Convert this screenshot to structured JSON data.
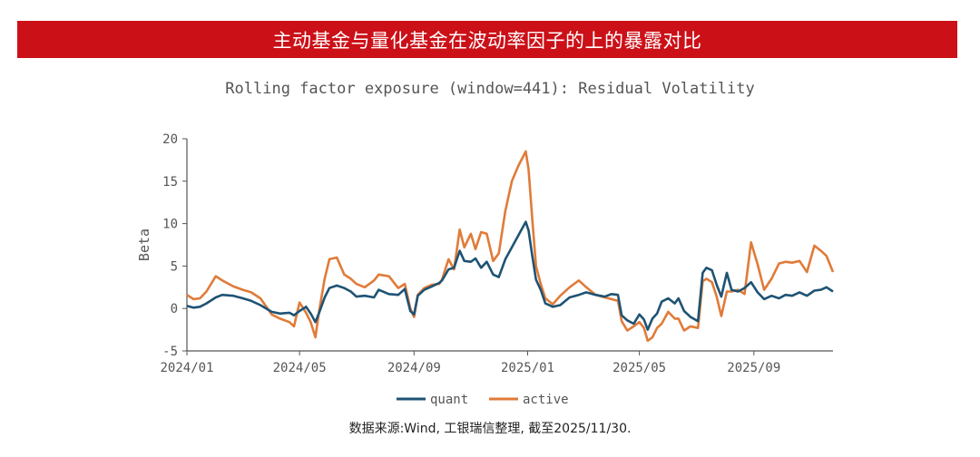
{
  "banner": {
    "title": "主动基金与量化基金在波动率因子的上的暴露对比"
  },
  "colors": {
    "banner_bg": "#cc1018",
    "quant": "#1e5374",
    "active": "#e07b39",
    "axis": "#555555",
    "text": "#555555"
  },
  "source": "数据来源:Wind, 工银瑞信整理, 截至2025/11/30.",
  "chart_data": {
    "type": "line",
    "title": "Rolling factor exposure (window=441): Residual Volatility",
    "xlabel": "",
    "ylabel": "Beta",
    "xlim": [
      "2024-01-01",
      "2025-11-25"
    ],
    "ylim": [
      -5,
      20
    ],
    "yticks": [
      -5,
      0,
      5,
      10,
      15,
      20
    ],
    "xticks": [
      {
        "date": "2024-01-01",
        "label": "2024/01"
      },
      {
        "date": "2024-05-01",
        "label": "2024/05"
      },
      {
        "date": "2024-09-01",
        "label": "2024/09"
      },
      {
        "date": "2025-01-01",
        "label": "2025/01"
      },
      {
        "date": "2025-05-01",
        "label": "2025/05"
      },
      {
        "date": "2025-09-01",
        "label": "2025/09"
      }
    ],
    "grid": false,
    "legend": "bottom-center",
    "series": [
      {
        "name": "quant",
        "points": [
          [
            "2024-01-01",
            0.3
          ],
          [
            "2024-01-08",
            0.1
          ],
          [
            "2024-01-15",
            0.2
          ],
          [
            "2024-01-22",
            0.6
          ],
          [
            "2024-02-01",
            1.3
          ],
          [
            "2024-02-08",
            1.6
          ],
          [
            "2024-02-20",
            1.5
          ],
          [
            "2024-03-01",
            1.2
          ],
          [
            "2024-03-10",
            0.9
          ],
          [
            "2024-03-20",
            0.4
          ],
          [
            "2024-04-01",
            -0.4
          ],
          [
            "2024-04-10",
            -0.6
          ],
          [
            "2024-04-20",
            -0.5
          ],
          [
            "2024-04-25",
            -0.8
          ],
          [
            "2024-05-01",
            -0.3
          ],
          [
            "2024-05-08",
            0.2
          ],
          [
            "2024-05-13",
            -0.6
          ],
          [
            "2024-05-18",
            -1.6
          ],
          [
            "2024-05-22",
            -0.5
          ],
          [
            "2024-05-28",
            1.3
          ],
          [
            "2024-06-02",
            2.4
          ],
          [
            "2024-06-10",
            2.7
          ],
          [
            "2024-06-18",
            2.4
          ],
          [
            "2024-06-25",
            2.0
          ],
          [
            "2024-07-01",
            1.4
          ],
          [
            "2024-07-10",
            1.5
          ],
          [
            "2024-07-20",
            1.3
          ],
          [
            "2024-07-25",
            2.2
          ],
          [
            "2024-08-05",
            1.7
          ],
          [
            "2024-08-15",
            1.6
          ],
          [
            "2024-08-22",
            2.3
          ],
          [
            "2024-08-28",
            -0.3
          ],
          [
            "2024-09-01",
            -0.7
          ],
          [
            "2024-09-05",
            1.5
          ],
          [
            "2024-09-12",
            2.2
          ],
          [
            "2024-09-20",
            2.6
          ],
          [
            "2024-09-28",
            3.0
          ],
          [
            "2024-10-01",
            3.3
          ],
          [
            "2024-10-08",
            4.6
          ],
          [
            "2024-10-14",
            4.8
          ],
          [
            "2024-10-20",
            6.8
          ],
          [
            "2024-10-25",
            5.6
          ],
          [
            "2024-11-01",
            5.5
          ],
          [
            "2024-11-06",
            5.9
          ],
          [
            "2024-11-12",
            4.8
          ],
          [
            "2024-11-18",
            5.5
          ],
          [
            "2024-11-25",
            4.0
          ],
          [
            "2024-12-01",
            3.7
          ],
          [
            "2024-12-08",
            5.8
          ],
          [
            "2024-12-15",
            7.2
          ],
          [
            "2024-12-22",
            8.6
          ],
          [
            "2024-12-30",
            10.2
          ],
          [
            "2025-01-02",
            9.2
          ],
          [
            "2025-01-06",
            6.2
          ],
          [
            "2025-01-10",
            3.4
          ],
          [
            "2025-01-15",
            2.2
          ],
          [
            "2025-01-20",
            0.6
          ],
          [
            "2025-01-28",
            0.2
          ],
          [
            "2025-02-05",
            0.4
          ],
          [
            "2025-02-15",
            1.3
          ],
          [
            "2025-02-25",
            1.6
          ],
          [
            "2025-03-05",
            1.9
          ],
          [
            "2025-03-15",
            1.6
          ],
          [
            "2025-03-25",
            1.4
          ],
          [
            "2025-04-01",
            1.7
          ],
          [
            "2025-04-08",
            1.6
          ],
          [
            "2025-04-12",
            -0.8
          ],
          [
            "2025-04-18",
            -1.4
          ],
          [
            "2025-04-25",
            -1.8
          ],
          [
            "2025-05-01",
            -0.7
          ],
          [
            "2025-05-06",
            -1.3
          ],
          [
            "2025-05-10",
            -2.5
          ],
          [
            "2025-05-15",
            -1.2
          ],
          [
            "2025-05-20",
            -0.6
          ],
          [
            "2025-05-25",
            0.8
          ],
          [
            "2025-06-01",
            1.2
          ],
          [
            "2025-06-08",
            0.6
          ],
          [
            "2025-06-12",
            1.2
          ],
          [
            "2025-06-18",
            -0.3
          ],
          [
            "2025-06-25",
            -1.0
          ],
          [
            "2025-07-03",
            -1.5
          ],
          [
            "2025-07-08",
            4.2
          ],
          [
            "2025-07-12",
            4.8
          ],
          [
            "2025-07-18",
            4.5
          ],
          [
            "2025-07-23",
            2.8
          ],
          [
            "2025-07-28",
            1.4
          ],
          [
            "2025-08-03",
            4.2
          ],
          [
            "2025-08-08",
            2.2
          ],
          [
            "2025-08-15",
            2.0
          ],
          [
            "2025-08-22",
            2.4
          ],
          [
            "2025-08-29",
            3.1
          ],
          [
            "2025-09-05",
            1.9
          ],
          [
            "2025-09-12",
            1.1
          ],
          [
            "2025-09-20",
            1.5
          ],
          [
            "2025-09-28",
            1.2
          ],
          [
            "2025-10-05",
            1.6
          ],
          [
            "2025-10-12",
            1.5
          ],
          [
            "2025-10-20",
            1.9
          ],
          [
            "2025-10-28",
            1.5
          ],
          [
            "2025-11-05",
            2.1
          ],
          [
            "2025-11-12",
            2.2
          ],
          [
            "2025-11-18",
            2.5
          ],
          [
            "2025-11-25",
            2.0
          ]
        ]
      },
      {
        "name": "active",
        "points": [
          [
            "2024-01-01",
            1.6
          ],
          [
            "2024-01-08",
            1.1
          ],
          [
            "2024-01-15",
            1.2
          ],
          [
            "2024-01-22",
            2.0
          ],
          [
            "2024-02-01",
            3.8
          ],
          [
            "2024-02-08",
            3.3
          ],
          [
            "2024-02-20",
            2.6
          ],
          [
            "2024-03-01",
            2.2
          ],
          [
            "2024-03-10",
            1.9
          ],
          [
            "2024-03-20",
            1.2
          ],
          [
            "2024-04-01",
            -0.7
          ],
          [
            "2024-04-10",
            -1.2
          ],
          [
            "2024-04-20",
            -1.6
          ],
          [
            "2024-04-25",
            -2.1
          ],
          [
            "2024-05-01",
            0.7
          ],
          [
            "2024-05-08",
            -0.5
          ],
          [
            "2024-05-13",
            -1.6
          ],
          [
            "2024-05-18",
            -3.4
          ],
          [
            "2024-05-22",
            -0.3
          ],
          [
            "2024-05-28",
            3.5
          ],
          [
            "2024-06-02",
            5.8
          ],
          [
            "2024-06-10",
            6.0
          ],
          [
            "2024-06-18",
            4.0
          ],
          [
            "2024-06-25",
            3.5
          ],
          [
            "2024-07-01",
            2.9
          ],
          [
            "2024-07-10",
            2.5
          ],
          [
            "2024-07-20",
            3.3
          ],
          [
            "2024-07-25",
            4.0
          ],
          [
            "2024-08-05",
            3.8
          ],
          [
            "2024-08-15",
            2.4
          ],
          [
            "2024-08-22",
            2.9
          ],
          [
            "2024-08-28",
            0.0
          ],
          [
            "2024-09-01",
            -1.0
          ],
          [
            "2024-09-05",
            1.6
          ],
          [
            "2024-09-12",
            2.4
          ],
          [
            "2024-09-20",
            2.8
          ],
          [
            "2024-09-28",
            2.9
          ],
          [
            "2024-10-01",
            3.4
          ],
          [
            "2024-10-08",
            5.8
          ],
          [
            "2024-10-14",
            4.6
          ],
          [
            "2024-10-20",
            9.3
          ],
          [
            "2024-10-25",
            7.2
          ],
          [
            "2024-11-01",
            8.8
          ],
          [
            "2024-11-06",
            7.0
          ],
          [
            "2024-11-12",
            9.0
          ],
          [
            "2024-11-18",
            8.8
          ],
          [
            "2024-11-25",
            5.6
          ],
          [
            "2024-12-01",
            6.5
          ],
          [
            "2024-12-08",
            11.5
          ],
          [
            "2024-12-15",
            15.0
          ],
          [
            "2024-12-22",
            16.8
          ],
          [
            "2024-12-30",
            18.5
          ],
          [
            "2025-01-02",
            16.4
          ],
          [
            "2025-01-06",
            10.5
          ],
          [
            "2025-01-10",
            5.0
          ],
          [
            "2025-01-15",
            2.9
          ],
          [
            "2025-01-20",
            1.2
          ],
          [
            "2025-01-28",
            0.5
          ],
          [
            "2025-02-05",
            1.5
          ],
          [
            "2025-02-15",
            2.5
          ],
          [
            "2025-02-25",
            3.3
          ],
          [
            "2025-03-05",
            2.5
          ],
          [
            "2025-03-15",
            1.6
          ],
          [
            "2025-03-25",
            1.3
          ],
          [
            "2025-04-01",
            1.1
          ],
          [
            "2025-04-08",
            0.9
          ],
          [
            "2025-04-12",
            -1.5
          ],
          [
            "2025-04-18",
            -2.6
          ],
          [
            "2025-04-25",
            -2.1
          ],
          [
            "2025-05-01",
            -1.6
          ],
          [
            "2025-05-06",
            -2.3
          ],
          [
            "2025-05-10",
            -3.8
          ],
          [
            "2025-05-15",
            -3.4
          ],
          [
            "2025-05-20",
            -2.3
          ],
          [
            "2025-05-25",
            -1.8
          ],
          [
            "2025-06-01",
            -0.4
          ],
          [
            "2025-06-08",
            -1.2
          ],
          [
            "2025-06-12",
            -1.2
          ],
          [
            "2025-06-18",
            -2.6
          ],
          [
            "2025-06-25",
            -2.1
          ],
          [
            "2025-07-03",
            -2.3
          ],
          [
            "2025-07-08",
            3.2
          ],
          [
            "2025-07-12",
            3.5
          ],
          [
            "2025-07-18",
            3.1
          ],
          [
            "2025-07-23",
            1.4
          ],
          [
            "2025-07-28",
            -0.9
          ],
          [
            "2025-08-03",
            2.0
          ],
          [
            "2025-08-08",
            2.0
          ],
          [
            "2025-08-15",
            2.2
          ],
          [
            "2025-08-22",
            1.7
          ],
          [
            "2025-08-29",
            7.8
          ],
          [
            "2025-09-05",
            5.2
          ],
          [
            "2025-09-12",
            2.2
          ],
          [
            "2025-09-20",
            3.5
          ],
          [
            "2025-09-28",
            5.3
          ],
          [
            "2025-10-05",
            5.5
          ],
          [
            "2025-10-12",
            5.4
          ],
          [
            "2025-10-20",
            5.6
          ],
          [
            "2025-10-28",
            4.3
          ],
          [
            "2025-11-05",
            7.4
          ],
          [
            "2025-11-12",
            6.8
          ],
          [
            "2025-11-18",
            6.2
          ],
          [
            "2025-11-25",
            4.3
          ]
        ]
      }
    ]
  }
}
